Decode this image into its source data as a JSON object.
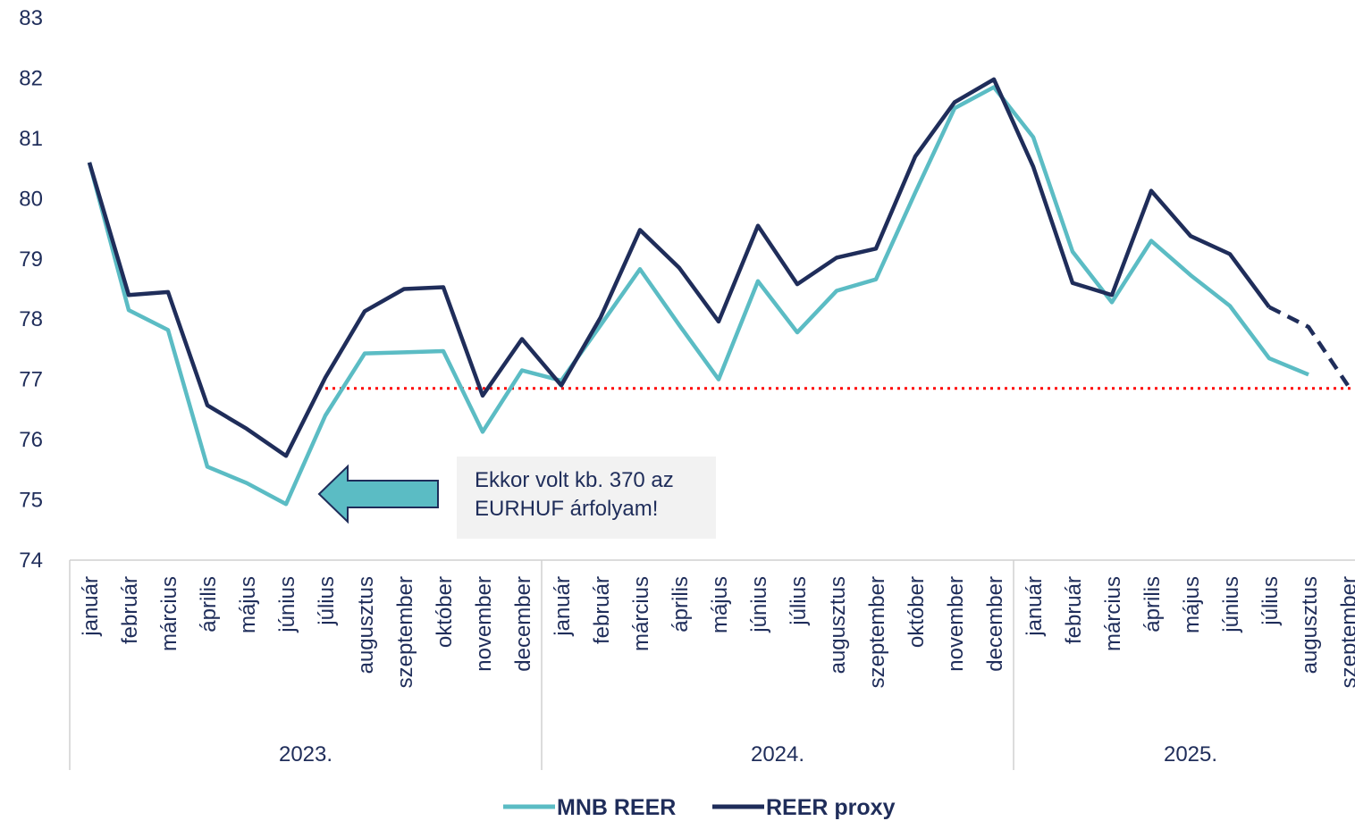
{
  "chart_data": {
    "type": "line",
    "categories": [
      "január",
      "február",
      "március",
      "április",
      "május",
      "június",
      "július",
      "augusztus",
      "szeptember",
      "október",
      "november",
      "december",
      "január",
      "február",
      "március",
      "április",
      "május",
      "június",
      "július",
      "augusztus",
      "szeptember",
      "október",
      "november",
      "december",
      "január",
      "február",
      "március",
      "április",
      "május",
      "június",
      "július",
      "augusztus",
      "szeptember"
    ],
    "groups": [
      {
        "label": "2023.",
        "count": 12
      },
      {
        "label": "2024.",
        "count": 12
      },
      {
        "label": "2025.",
        "count": 9
      }
    ],
    "series": [
      {
        "name": "MNB REER",
        "color": "#5bbcc4",
        "values": [
          80.6,
          78.15,
          77.82,
          75.55,
          75.28,
          74.93,
          76.4,
          77.43,
          77.45,
          77.47,
          76.13,
          77.15,
          76.98,
          77.9,
          78.83,
          77.9,
          77.0,
          78.63,
          77.78,
          78.47,
          78.66,
          80.1,
          81.5,
          81.85,
          81.02,
          79.12,
          78.28,
          79.3,
          78.73,
          78.22,
          77.35,
          77.08,
          null
        ]
      },
      {
        "name": "REER proxy",
        "color": "#1f2d5a",
        "dashed_from": 30,
        "values": [
          80.6,
          78.4,
          78.45,
          76.57,
          76.18,
          75.73,
          77.03,
          78.13,
          78.5,
          78.53,
          76.73,
          77.67,
          76.9,
          78.03,
          79.48,
          78.85,
          77.96,
          79.55,
          78.58,
          79.02,
          79.17,
          80.7,
          81.6,
          81.98,
          80.53,
          78.6,
          78.4,
          80.13,
          79.38,
          79.08,
          78.2,
          77.87,
          76.9
        ]
      }
    ],
    "ylim": [
      74,
      83
    ],
    "yticks": [
      74,
      75,
      76,
      77,
      78,
      79,
      80,
      81,
      82,
      83
    ],
    "reference_line": {
      "value": 76.85,
      "from": 6,
      "color": "#ff0000"
    },
    "annotation": {
      "lines": [
        "Ekkor volt kb. 370 az",
        "EURHUF árfolyam!"
      ]
    }
  }
}
